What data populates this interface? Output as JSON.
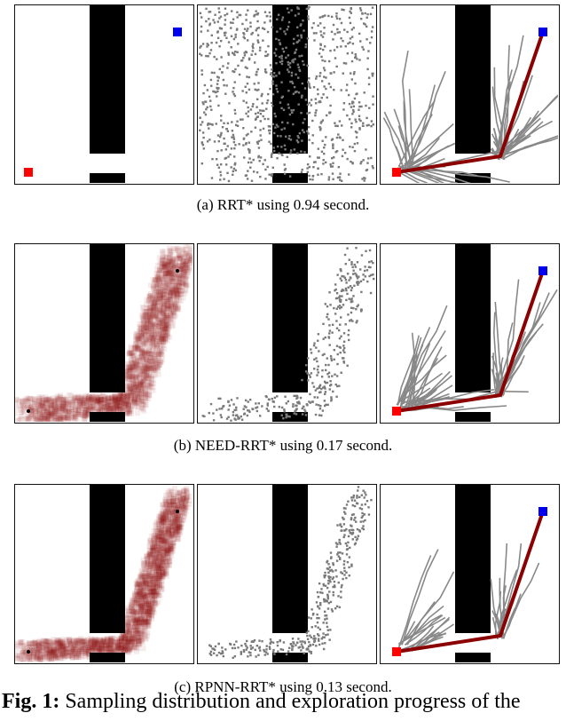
{
  "figure": {
    "rows": [
      {
        "caption": "(a) RRT* using 0.94 second.",
        "heatmap": "none",
        "samples_region": "uniform",
        "tree_spread": "wide"
      },
      {
        "caption": "(b) NEED-RRT* using 0.17 second.",
        "heatmap": "corridor",
        "samples_region": "corridor",
        "tree_spread": "medium"
      },
      {
        "caption": "(c) RPNN-RRT* using 0.13 second.",
        "heatmap": "corridor",
        "samples_region": "corridor",
        "tree_spread": "narrow"
      }
    ],
    "colors": {
      "obstacle": "#000000",
      "start": "#ff0000",
      "goal": "#0000ee",
      "path": "#8b0000",
      "tree": "#888888",
      "samples": "#7a7a7a",
      "heatmap": "#8b0a0a"
    },
    "partial_caption_bold": "Fig. 1:",
    "partial_caption_text": " Sampling distribution and exploration progress of the"
  }
}
